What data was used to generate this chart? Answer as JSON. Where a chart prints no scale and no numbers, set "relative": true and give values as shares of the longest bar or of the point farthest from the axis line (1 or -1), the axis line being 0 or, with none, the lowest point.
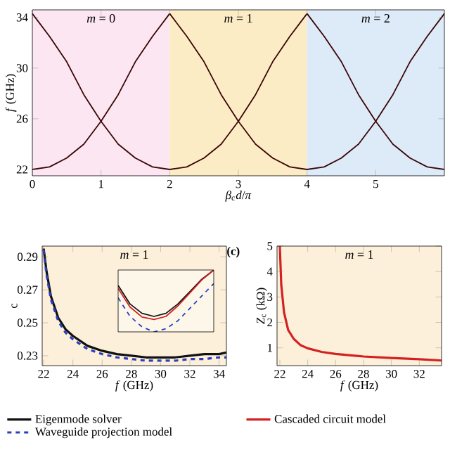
{
  "chart_data": [
    {
      "type": "line",
      "xlabel": "*β*$_{c}$*d*/*π*",
      "ylabel": "*f* (GHz)",
      "xlim": [
        0,
        6
      ],
      "ylim": [
        21.5,
        34.6
      ],
      "xticks": [
        0,
        1,
        2,
        3,
        4,
        5
      ],
      "yticks": [
        22,
        26,
        30,
        34
      ],
      "line_style": "solid",
      "bands": [
        {
          "axis": "x",
          "from": 0,
          "to": 2,
          "label": "*m* = 0",
          "color": "#fbe6f1"
        },
        {
          "axis": "x",
          "from": 2,
          "to": 4,
          "label": "*m* = 1",
          "color": "#fcecc6"
        },
        {
          "axis": "x",
          "from": 4,
          "to": 6,
          "label": "*m* = 2",
          "color": "#ddebf8"
        }
      ],
      "series": [
        {
          "color": "#3a0505",
          "x": [
            0,
            0.25,
            0.5,
            0.75,
            1,
            1.25,
            1.5,
            1.75,
            2
          ],
          "values": [
            22,
            22.2,
            22.9,
            24,
            25.8,
            27.9,
            30.5,
            32.5,
            34.3
          ]
        },
        {
          "color": "#3a0505",
          "x": [
            0,
            0.25,
            0.5,
            0.75,
            1,
            1.25,
            1.5,
            1.75,
            2,
            2.25,
            2.5,
            2.75,
            3,
            3.25,
            3.5,
            3.75,
            4
          ],
          "values": [
            34.3,
            32.5,
            30.5,
            27.9,
            25.8,
            24,
            22.9,
            22.2,
            22,
            22.2,
            22.9,
            24,
            25.8,
            27.9,
            30.5,
            32.5,
            34.3
          ]
        },
        {
          "color": "#3a0505",
          "x": [
            2,
            2.25,
            2.5,
            2.75,
            3,
            3.25,
            3.5,
            3.75,
            4,
            4.25,
            4.5,
            4.75,
            5,
            5.25,
            5.5,
            5.75,
            6
          ],
          "values": [
            34.3,
            32.5,
            30.5,
            27.9,
            25.8,
            24,
            22.9,
            22.2,
            22,
            22.2,
            22.9,
            24,
            25.8,
            27.9,
            30.5,
            32.5,
            34.3
          ]
        },
        {
          "color": "#3a0505",
          "x": [
            4,
            4.25,
            4.5,
            4.75,
            5,
            5.25,
            5.5,
            5.75,
            6
          ],
          "values": [
            34.3,
            32.5,
            30.5,
            27.9,
            25.8,
            24,
            22.9,
            22.2,
            22
          ]
        }
      ]
    },
    {
      "type": "line",
      "xlabel": "*f* (GHz)",
      "ylabel": "c",
      "xlim": [
        21.9,
        34.5
      ],
      "ylim": [
        0.224,
        0.2965
      ],
      "xticks": [
        22,
        24,
        26,
        28,
        30,
        32,
        34
      ],
      "yticks": [
        0.23,
        0.25,
        0.27,
        0.29
      ],
      "legend": "bottom",
      "annotations": [
        "*m* = 1"
      ],
      "series": [
        {
          "name": "Eigenmode solver",
          "color": "#111111",
          "line_style": "solid",
          "x": [
            22,
            22.2,
            22.5,
            23,
            23.5,
            24,
            25,
            26,
            27,
            28,
            29,
            30,
            31,
            32,
            33,
            34,
            34.5
          ],
          "values": [
            0.295,
            0.281,
            0.266,
            0.253,
            0.246,
            0.242,
            0.236,
            0.233,
            0.231,
            0.23,
            0.229,
            0.229,
            0.229,
            0.23,
            0.231,
            0.231,
            0.232
          ]
        },
        {
          "name": "Waveguide projection  model",
          "color": "#2a3fbf",
          "line_style": "dashed",
          "x": [
            22,
            22.2,
            22.5,
            23,
            23.5,
            24,
            25,
            26,
            27,
            28,
            29,
            30,
            31,
            32,
            33,
            34,
            34.5
          ],
          "values": [
            0.294,
            0.279,
            0.264,
            0.251,
            0.244,
            0.24,
            0.234,
            0.231,
            0.229,
            0.228,
            0.227,
            0.227,
            0.227,
            0.228,
            0.228,
            0.229,
            0.229
          ]
        }
      ]
    },
    {
      "type": "line",
      "relative": true,
      "categories": [
        null,
        null,
        null,
        null,
        null,
        null,
        null,
        null,
        null
      ],
      "series": [
        {
          "color": "#111111",
          "line_style": "solid",
          "values": [
            0.75,
            0.45,
            0.3,
            0.25,
            0.3,
            0.45,
            0.65,
            0.85,
            1.0
          ]
        },
        {
          "color": "#d42020",
          "line_style": "solid",
          "values": [
            0.7,
            0.4,
            0.24,
            0.2,
            0.25,
            0.42,
            0.63,
            0.84,
            1.0
          ]
        },
        {
          "color": "#2a3fbf",
          "line_style": "dashed",
          "values": [
            0.55,
            0.25,
            0.08,
            0.0,
            0.05,
            0.18,
            0.38,
            0.58,
            0.78
          ]
        }
      ]
    },
    {
      "type": "line",
      "xlabel": "*f* (GHz)",
      "ylabel": "*Z*$_{c}$ (kΩ)",
      "xlim": [
        21.8,
        33.6
      ],
      "ylim": [
        0.3,
        5
      ],
      "xticks": [
        22,
        24,
        26,
        28,
        30,
        32
      ],
      "yticks": [
        1,
        2,
        3,
        4,
        5
      ],
      "legend": "bottom",
      "annotations": [
        "*m* = 1",
        "(c)"
      ],
      "series": [
        {
          "name": "Cascaded circuit model",
          "color": "#d42020",
          "line_style": "solid",
          "x": [
            22,
            22.1,
            22.3,
            22.6,
            23,
            23.5,
            24,
            25,
            26,
            28,
            30,
            32,
            33.6
          ],
          "values": [
            5,
            3.5,
            2.4,
            1.7,
            1.35,
            1.1,
            0.98,
            0.84,
            0.76,
            0.66,
            0.6,
            0.55,
            0.5
          ]
        }
      ]
    }
  ]
}
